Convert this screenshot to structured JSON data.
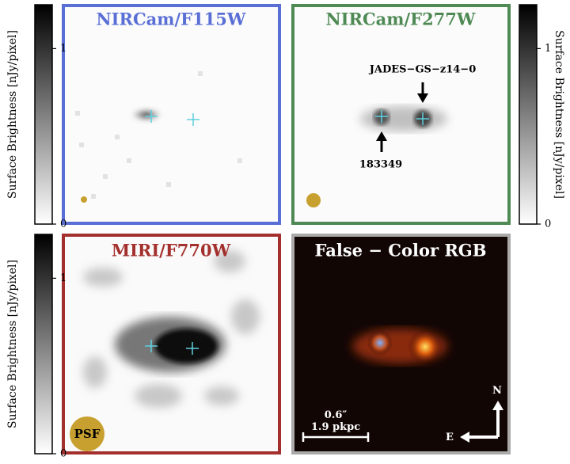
{
  "panels": [
    {
      "title": "NIRCam/F115W"
    },
    {
      "title": "NIRCam/F277W",
      "annotations": [
        "JADES−GS−z14−0",
        "183349"
      ]
    },
    {
      "title": "MIRI/F770W",
      "psf_label": "PSF"
    },
    {
      "title": "False − Color RGB",
      "scale_angle": "0.6″",
      "scale_physical": "1.9 pkpc",
      "compass": [
        "N",
        "E"
      ]
    }
  ],
  "colorbars": [
    {
      "label": "Surface Brightness [nJy/pixel]",
      "lim": [
        0,
        1.25
      ],
      "ticks": [
        0,
        1
      ]
    },
    {
      "label": "Surface Brightness [nJy/pixel]",
      "lim": [
        0,
        1.25
      ],
      "ticks": [
        0,
        1
      ]
    },
    {
      "label": "Surface Brightness [nJy/pixel]",
      "lim": [
        0,
        1.25
      ],
      "ticks": [
        0,
        1
      ]
    }
  ]
}
